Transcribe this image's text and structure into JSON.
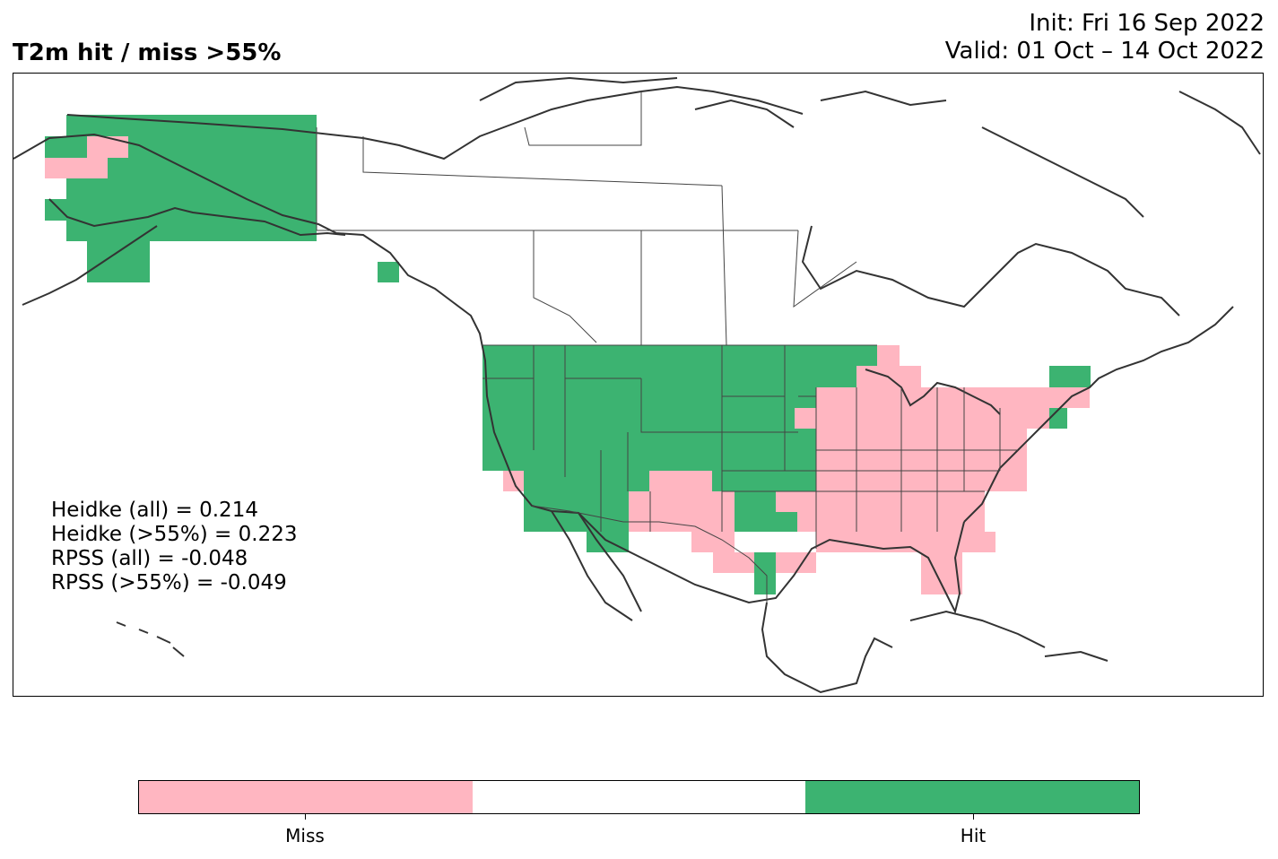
{
  "title": "T2m hit / miss  >55%",
  "init": "Init: Fri 16 Sep 2022",
  "valid": "Valid: 01 Oct – 14 Oct 2022",
  "stats": [
    "Heidke (all) = 0.214",
    "Heidke (>55%) = 0.223",
    "RPSS (all) = -0.048",
    "RPSS (>55%) = -0.049"
  ],
  "colors": {
    "miss": "#ffb6c1",
    "neutral": "#ffffff",
    "hit": "#3cb371",
    "coast": "#333333",
    "border": "#444444"
  },
  "legend": {
    "labels": [
      "Miss",
      "Hit"
    ]
  }
}
